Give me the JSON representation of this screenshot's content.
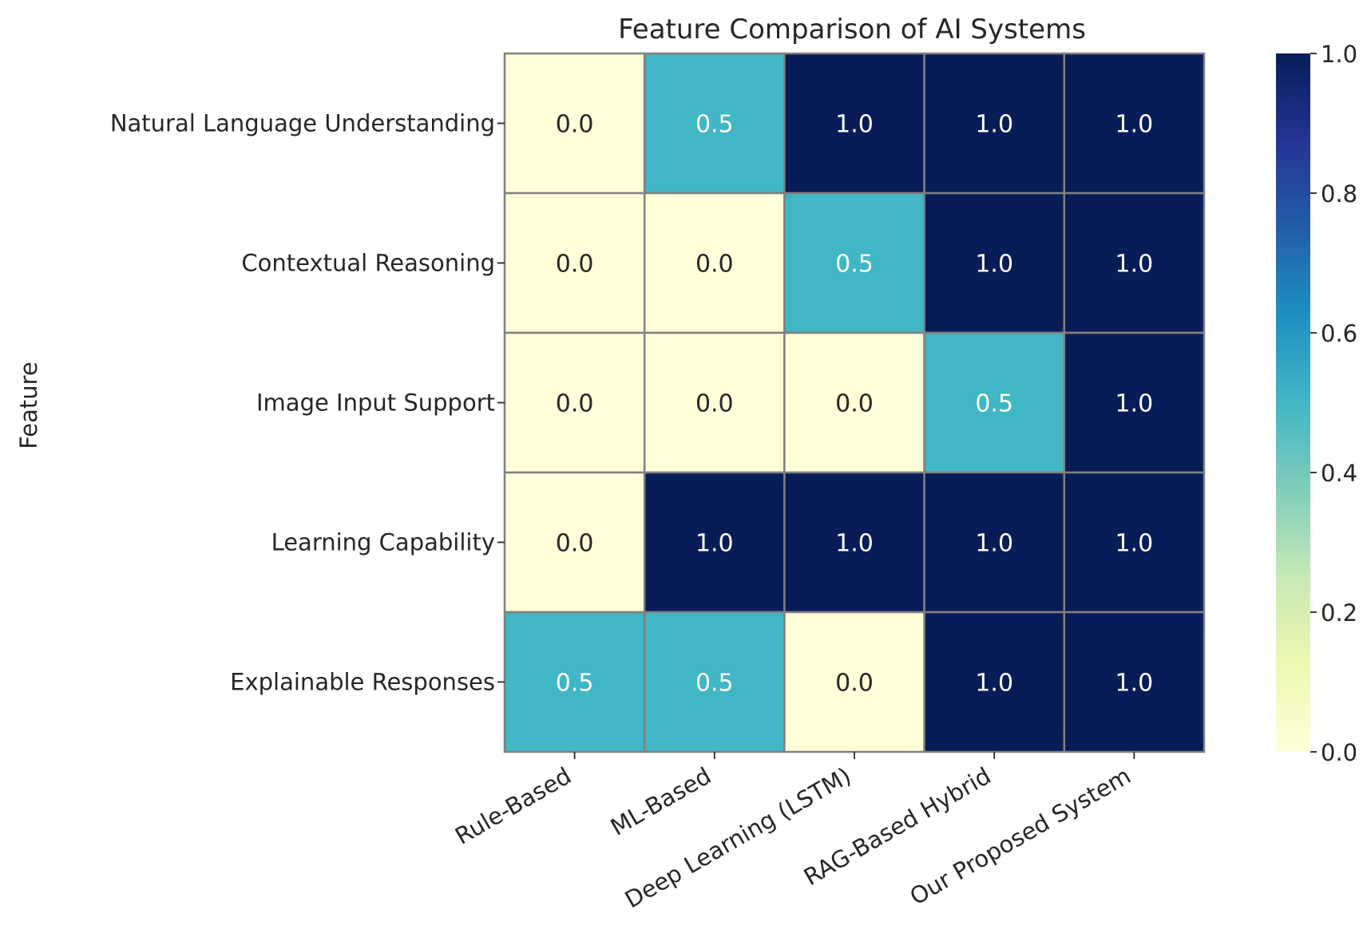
{
  "chart_data": {
    "type": "heatmap",
    "title": "Feature Comparison of AI Systems",
    "xlabel": "",
    "ylabel": "Feature",
    "x_categories": [
      "Rule-Based",
      "ML-Based",
      "Deep Learning (LSTM)",
      "RAG-Based Hybrid",
      "Our Proposed System"
    ],
    "y_categories": [
      "Natural Language Understanding",
      "Contextual Reasoning",
      "Image Input Support",
      "Learning Capability",
      "Explainable Responses"
    ],
    "values": [
      [
        0.0,
        0.5,
        1.0,
        1.0,
        1.0
      ],
      [
        0.0,
        0.0,
        0.5,
        1.0,
        1.0
      ],
      [
        0.0,
        0.0,
        0.0,
        0.5,
        1.0
      ],
      [
        0.0,
        1.0,
        1.0,
        1.0,
        1.0
      ],
      [
        0.5,
        0.5,
        0.0,
        1.0,
        1.0
      ]
    ],
    "annotations": [
      [
        "0.0",
        "0.5",
        "1.0",
        "1.0",
        "1.0"
      ],
      [
        "0.0",
        "0.0",
        "0.5",
        "1.0",
        "1.0"
      ],
      [
        "0.0",
        "0.0",
        "0.0",
        "0.5",
        "1.0"
      ],
      [
        "0.0",
        "1.0",
        "1.0",
        "1.0",
        "1.0"
      ],
      [
        "0.5",
        "0.5",
        "0.0",
        "1.0",
        "1.0"
      ]
    ],
    "colormap": "YlGnBu",
    "vmin": 0.0,
    "vmax": 1.0,
    "colorbar_ticks": [
      "0.0",
      "0.2",
      "0.4",
      "0.6",
      "0.8",
      "1.0"
    ],
    "cell_border_color": "#808080",
    "annotation_dark_text_color": "#262626",
    "annotation_light_text_color": "#ffffff",
    "grid": false,
    "legend": "colorbar-right"
  }
}
